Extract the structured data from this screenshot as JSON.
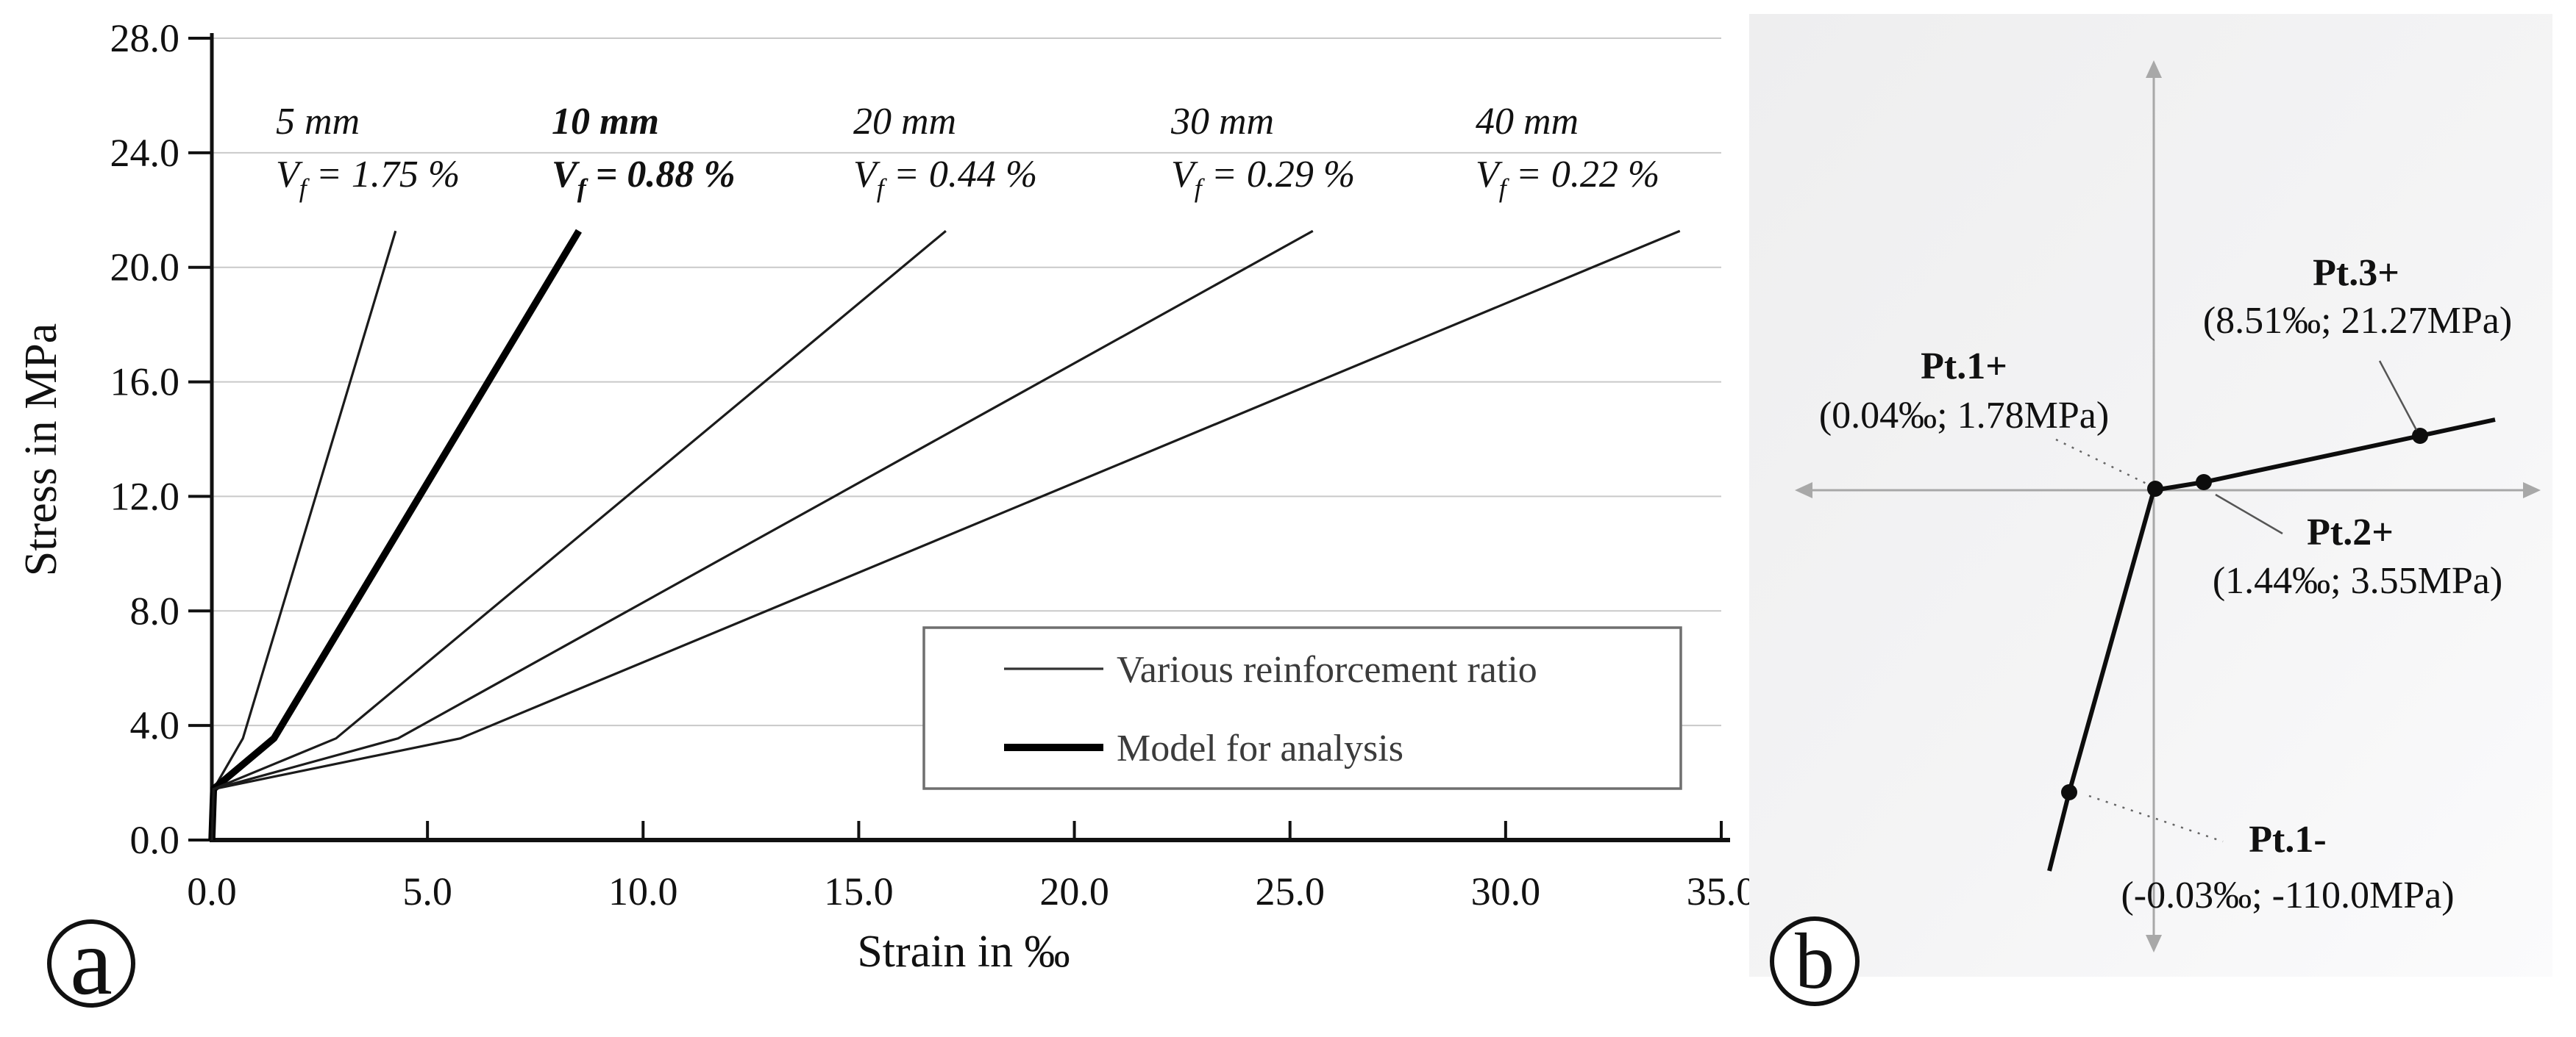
{
  "panels": {
    "a": {
      "letter": "a"
    },
    "b": {
      "letter": "b"
    }
  },
  "chart_data": [
    {
      "panel": "a",
      "type": "line",
      "title": "",
      "xlabel": "Strain in ‰",
      "ylabel": "Stress in MPa",
      "xlim": [
        0,
        35
      ],
      "ylim": [
        0,
        28
      ],
      "grid": "horizontal",
      "x_ticks": {
        "values": [
          0,
          5,
          10,
          15,
          20,
          25,
          30,
          35
        ],
        "labels": [
          "0.0",
          "5.0",
          "10.0",
          "15.0",
          "20.0",
          "25.0",
          "30.0",
          "35.0"
        ]
      },
      "y_ticks": {
        "values": [
          0,
          4,
          8,
          12,
          16,
          20,
          24,
          28
        ],
        "labels": [
          "0.0",
          "4.0",
          "8.0",
          "12.0",
          "16.0",
          "20.0",
          "24.0",
          "28.0"
        ]
      },
      "vf_symbol": {
        "base": "V",
        "sub": "f"
      },
      "legend": {
        "position": "lower-right",
        "entries": [
          {
            "label": "Various reinforcement ratio",
            "line": "thin"
          },
          {
            "label": "Model for analysis",
            "line": "thick"
          }
        ]
      },
      "series": [
        {
          "name": "5 mm",
          "vf_text": "= 1.75 %",
          "emphasis": false,
          "points": [
            [
              0,
              0
            ],
            [
              0.04,
              1.78
            ],
            [
              0.72,
              3.55
            ],
            [
              4.26,
              21.27
            ]
          ]
        },
        {
          "name": "10 mm",
          "vf_text": "= 0.88 %",
          "emphasis": true,
          "points": [
            [
              0,
              0
            ],
            [
              0.04,
              1.78
            ],
            [
              1.44,
              3.55
            ],
            [
              8.51,
              21.27
            ]
          ]
        },
        {
          "name": "20 mm",
          "vf_text": "= 0.44 %",
          "emphasis": false,
          "points": [
            [
              0,
              0
            ],
            [
              0.04,
              1.78
            ],
            [
              2.88,
              3.55
            ],
            [
              17.02,
              21.27
            ]
          ]
        },
        {
          "name": "30 mm",
          "vf_text": "= 0.29 %",
          "emphasis": false,
          "points": [
            [
              0,
              0
            ],
            [
              0.04,
              1.78
            ],
            [
              4.32,
              3.55
            ],
            [
              25.53,
              21.27
            ]
          ]
        },
        {
          "name": "40 mm",
          "vf_text": "= 0.22 %",
          "emphasis": false,
          "points": [
            [
              0,
              0
            ],
            [
              0.04,
              1.78
            ],
            [
              5.76,
              3.55
            ],
            [
              34.04,
              21.27
            ]
          ]
        }
      ]
    },
    {
      "panel": "b",
      "type": "line",
      "description": "Tri-linear stress-strain model with labeled characteristic points",
      "points": [
        {
          "name": "Pt.1+",
          "coords": "(0.04‰; 1.78MPa)",
          "strain_permille": 0.04,
          "stress_mpa": 1.78
        },
        {
          "name": "Pt.2+",
          "coords": "(1.44‰; 3.55MPa)",
          "strain_permille": 1.44,
          "stress_mpa": 3.55
        },
        {
          "name": "Pt.3+",
          "coords": "(8.51‰; 21.27MPa)",
          "strain_permille": 8.51,
          "stress_mpa": 21.27
        },
        {
          "name": "Pt.1-",
          "coords": "(-0.03‰; -110.0MPa)",
          "strain_permille": -0.03,
          "stress_mpa": -110.0
        }
      ]
    }
  ]
}
